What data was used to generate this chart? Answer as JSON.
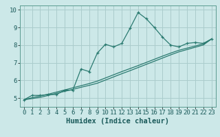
{
  "xlabel": "Humidex (Indice chaleur)",
  "bg_color": "#cce8e8",
  "grid_color": "#aacccc",
  "line_color": "#2a7a70",
  "x_values": [
    0,
    1,
    2,
    3,
    4,
    5,
    6,
    7,
    8,
    9,
    10,
    11,
    12,
    13,
    14,
    15,
    16,
    17,
    18,
    19,
    20,
    21,
    22,
    23
  ],
  "curve_y": [
    4.9,
    5.15,
    5.15,
    5.2,
    5.2,
    5.45,
    5.45,
    6.65,
    6.5,
    7.55,
    8.05,
    7.9,
    8.1,
    8.95,
    9.85,
    9.5,
    9.0,
    8.45,
    8.0,
    7.9,
    8.1,
    8.15,
    8.1,
    8.35
  ],
  "line1_y": [
    4.9,
    4.97,
    5.04,
    5.15,
    5.27,
    5.38,
    5.49,
    5.61,
    5.72,
    5.84,
    6.02,
    6.2,
    6.38,
    6.55,
    6.73,
    6.91,
    7.09,
    7.27,
    7.45,
    7.62,
    7.75,
    7.88,
    8.01,
    8.35
  ],
  "line2_y": [
    4.9,
    5.02,
    5.12,
    5.22,
    5.34,
    5.46,
    5.58,
    5.7,
    5.82,
    5.96,
    6.14,
    6.32,
    6.5,
    6.67,
    6.84,
    7.02,
    7.2,
    7.38,
    7.55,
    7.71,
    7.83,
    7.95,
    8.08,
    8.35
  ],
  "ylim": [
    4.5,
    10.25
  ],
  "xlim": [
    -0.5,
    23.5
  ],
  "yticks": [
    5,
    6,
    7,
    8,
    9,
    10
  ],
  "xticks": [
    0,
    1,
    2,
    3,
    4,
    5,
    6,
    7,
    8,
    9,
    10,
    11,
    12,
    13,
    14,
    15,
    16,
    17,
    18,
    19,
    20,
    21,
    22,
    23
  ],
  "tick_fontsize": 6.5,
  "label_fontsize": 7.5
}
